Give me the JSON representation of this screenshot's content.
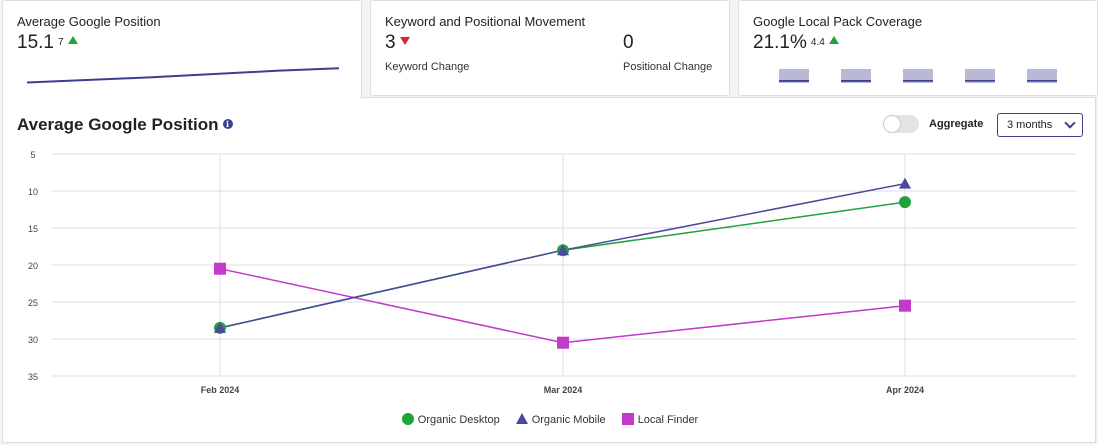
{
  "cards": {
    "position": {
      "title": "Average Google Position",
      "value": "15.1",
      "delta": "7",
      "sparkline": [
        29,
        28.6,
        28.2,
        27.7,
        27.2,
        26.8
      ]
    },
    "movement": {
      "title": "Keyword and Positional Movement",
      "keyword_value": "3",
      "keyword_label": "Keyword Change",
      "positional_value": "0",
      "positional_label": "Positional Change"
    },
    "coverage": {
      "title": "Google Local Pack Coverage",
      "value": "21.1%",
      "delta": "4.4",
      "bars": [
        0.62,
        0.62,
        0.56,
        0.52,
        0.52
      ]
    }
  },
  "panel": {
    "title": "Average Google Position",
    "toggle_label": "Aggregate",
    "range_select": "3 months"
  },
  "colors": {
    "accent": "#3d3f8f",
    "desktop": "#1fa33a",
    "mobile": "#4b4a9a",
    "finder": "#c23ac8",
    "up": "#1fa33a",
    "down": "#d9262c"
  },
  "chart_data": {
    "type": "line",
    "categories": [
      "Feb 2024",
      "Mar 2024",
      "Apr 2024"
    ],
    "y_ticks": [
      "5",
      "10",
      "15",
      "20",
      "25",
      "30",
      "35"
    ],
    "ylim": [
      5,
      35
    ],
    "y_reversed": true,
    "grid": true,
    "legend_position": "bottom-center",
    "series": [
      {
        "name": "Organic Desktop",
        "marker": "circle",
        "values": [
          28.5,
          18,
          11.5
        ]
      },
      {
        "name": "Organic Mobile",
        "marker": "triangle",
        "values": [
          28.5,
          18,
          9
        ]
      },
      {
        "name": "Local Finder",
        "marker": "square",
        "values": [
          20.5,
          30.5,
          25.5
        ]
      }
    ]
  }
}
